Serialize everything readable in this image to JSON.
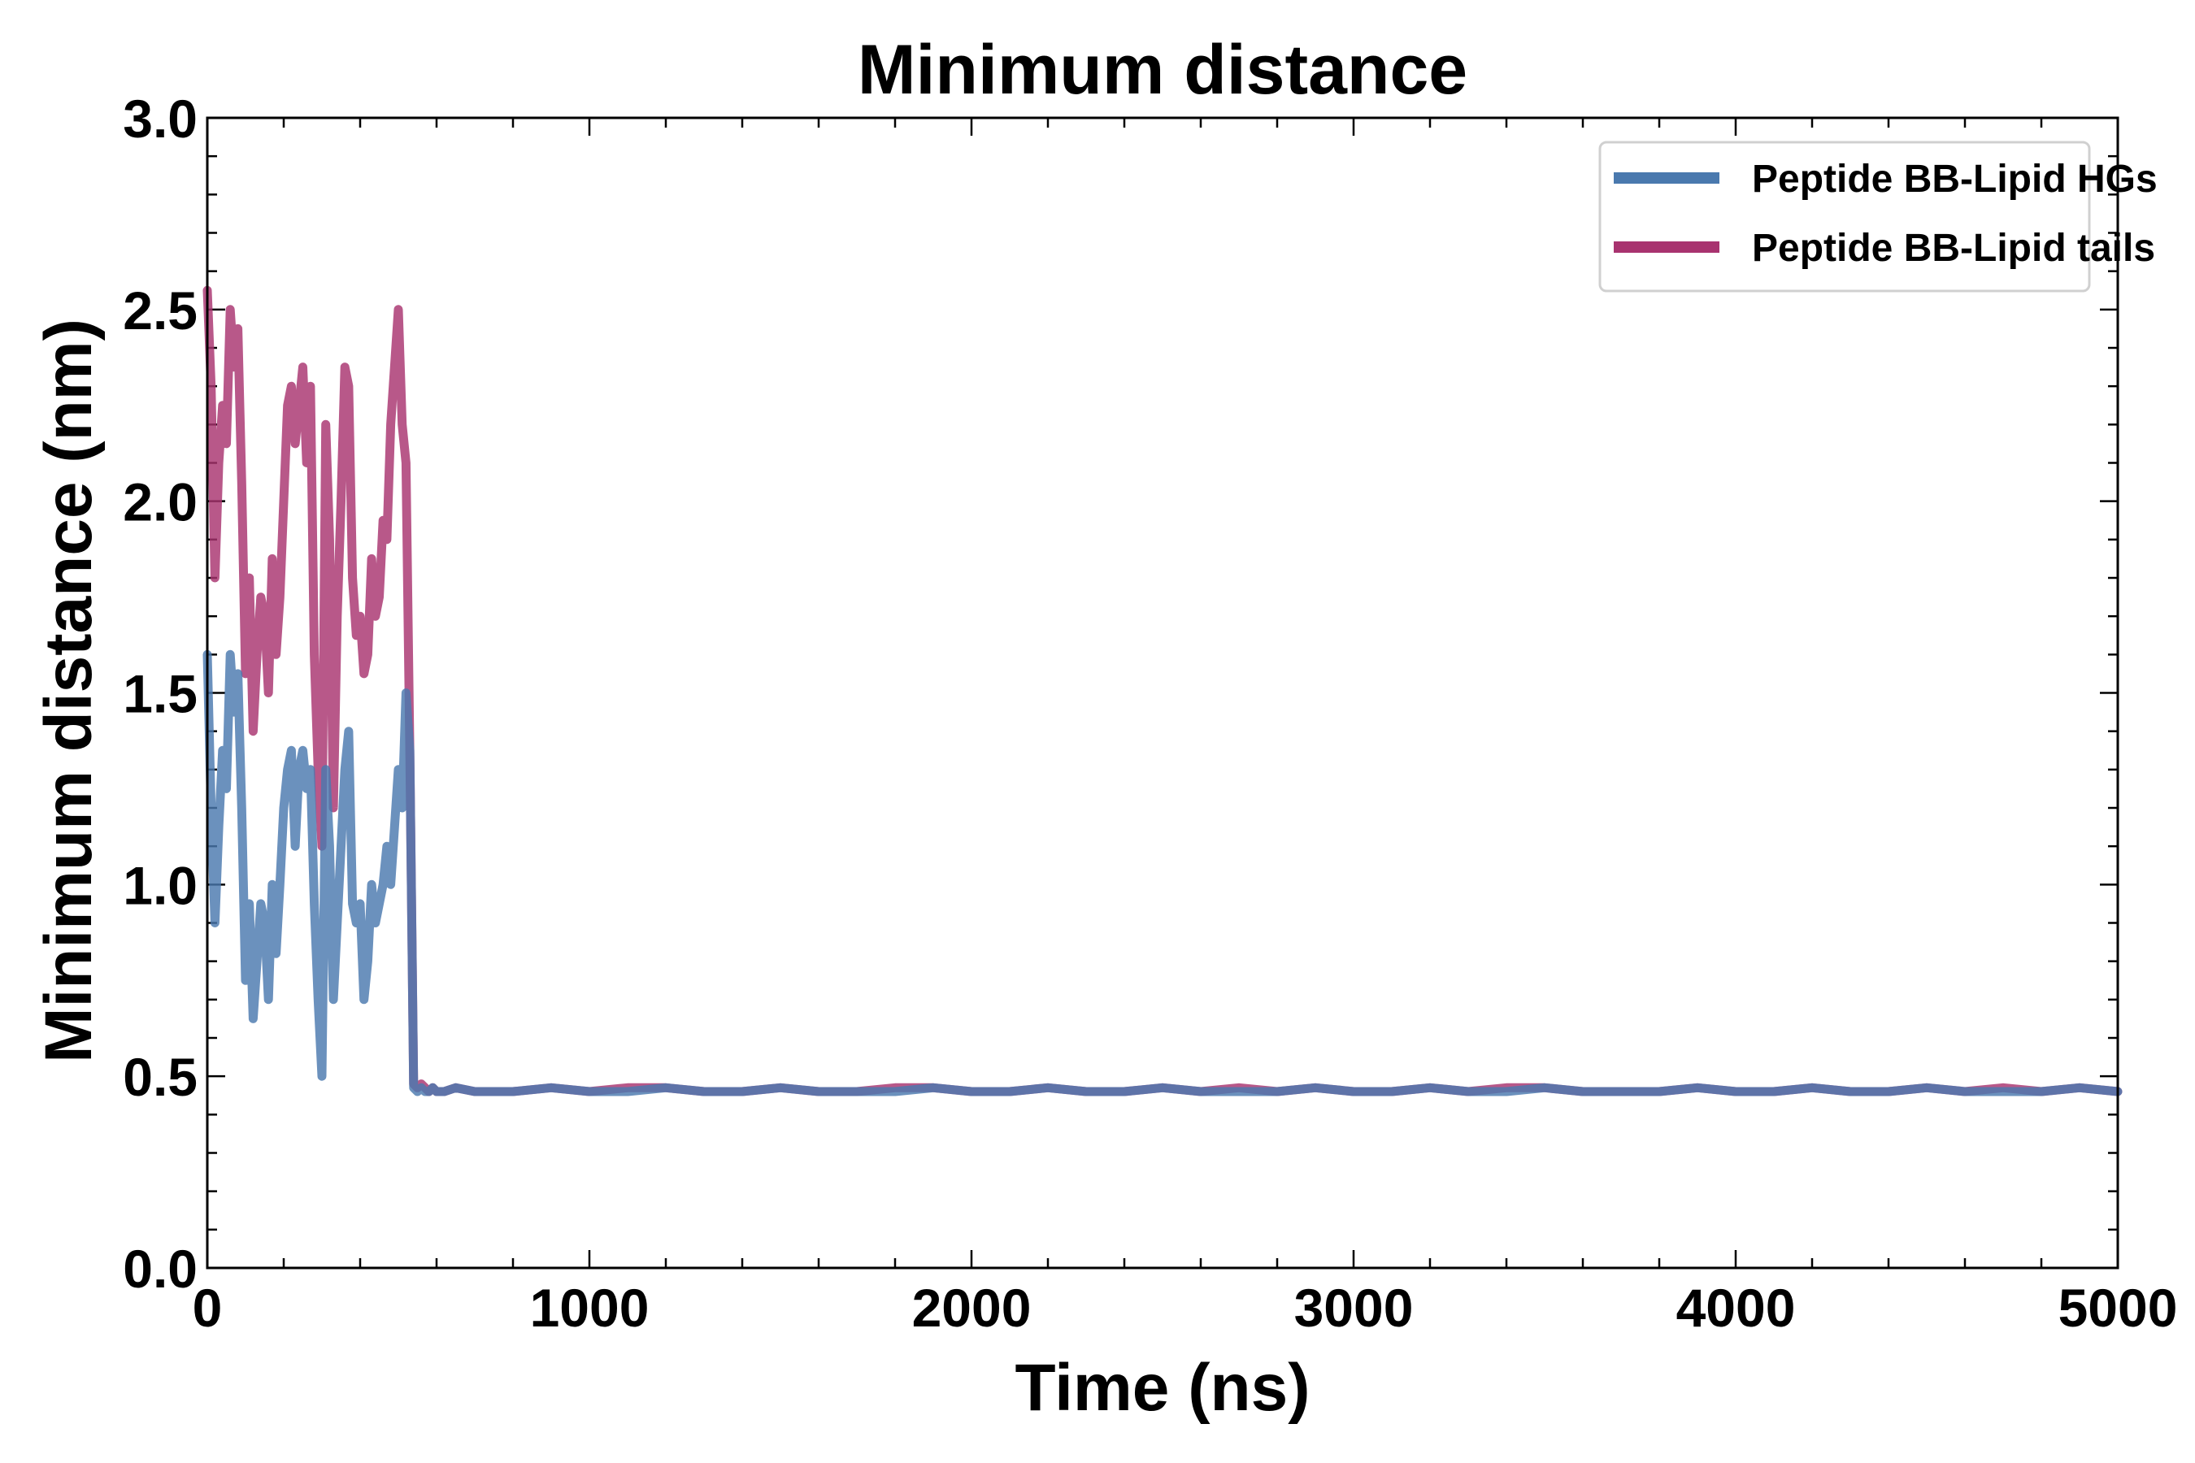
{
  "chart_data": {
    "type": "line",
    "title": "Minimum distance",
    "xlabel": "Time (ns)",
    "ylabel": "Minimum distance (nm)",
    "xlim": [
      0,
      5000
    ],
    "ylim": [
      0.0,
      3.0
    ],
    "x_ticks": [
      0,
      1000,
      2000,
      3000,
      4000,
      5000
    ],
    "x_tick_labels": [
      "0",
      "1000",
      "2000",
      "3000",
      "4000",
      "5000"
    ],
    "x_minor_step": 200,
    "y_ticks": [
      0.0,
      0.5,
      1.0,
      1.5,
      2.0,
      2.5,
      3.0
    ],
    "y_tick_labels": [
      "0.0",
      "0.5",
      "1.0",
      "1.5",
      "2.0",
      "2.5",
      "3.0"
    ],
    "y_minor_step": 0.1,
    "grid": false,
    "legend_position": "top-right",
    "series": [
      {
        "name": "Peptide BB-Lipid HGs",
        "color": "#4a79ae",
        "x": [
          0,
          10,
          20,
          30,
          40,
          50,
          60,
          70,
          80,
          90,
          100,
          110,
          120,
          130,
          140,
          150,
          160,
          170,
          180,
          190,
          200,
          210,
          220,
          230,
          240,
          250,
          260,
          270,
          280,
          290,
          300,
          310,
          320,
          330,
          340,
          350,
          360,
          370,
          380,
          390,
          400,
          410,
          420,
          430,
          440,
          450,
          460,
          470,
          480,
          490,
          500,
          510,
          520,
          530,
          540,
          550,
          560,
          570,
          580,
          590,
          600,
          620,
          650,
          700,
          800,
          900,
          1000,
          1100,
          1200,
          1300,
          1400,
          1500,
          1600,
          1700,
          1800,
          1900,
          2000,
          2100,
          2200,
          2300,
          2400,
          2500,
          2600,
          2700,
          2800,
          2900,
          3000,
          3100,
          3200,
          3300,
          3400,
          3500,
          3600,
          3700,
          3800,
          3900,
          4000,
          4100,
          4200,
          4300,
          4400,
          4500,
          4600,
          4700,
          4800,
          4900,
          5000
        ],
        "y": [
          1.6,
          1.2,
          0.9,
          1.15,
          1.35,
          1.25,
          1.6,
          1.45,
          1.55,
          1.2,
          0.75,
          0.95,
          0.65,
          0.8,
          0.95,
          0.9,
          0.7,
          1.0,
          0.82,
          1.0,
          1.2,
          1.3,
          1.35,
          1.1,
          1.3,
          1.35,
          1.25,
          1.3,
          0.95,
          0.7,
          0.5,
          1.3,
          1.1,
          0.7,
          0.9,
          1.1,
          1.3,
          1.4,
          0.95,
          0.9,
          0.95,
          0.7,
          0.8,
          1.0,
          0.9,
          0.95,
          1.0,
          1.1,
          1.0,
          1.15,
          1.3,
          1.2,
          1.5,
          1.35,
          0.47,
          0.46,
          0.47,
          0.46,
          0.46,
          0.47,
          0.46,
          0.46,
          0.47,
          0.46,
          0.46,
          0.47,
          0.46,
          0.46,
          0.47,
          0.46,
          0.46,
          0.47,
          0.46,
          0.46,
          0.46,
          0.47,
          0.46,
          0.46,
          0.47,
          0.46,
          0.46,
          0.47,
          0.46,
          0.46,
          0.46,
          0.47,
          0.46,
          0.46,
          0.47,
          0.46,
          0.46,
          0.47,
          0.46,
          0.46,
          0.46,
          0.47,
          0.46,
          0.46,
          0.47,
          0.46,
          0.46,
          0.47,
          0.46,
          0.46,
          0.46,
          0.47,
          0.46
        ]
      },
      {
        "name": "Peptide BB-Lipid tails",
        "color": "#a8336f",
        "x": [
          0,
          10,
          20,
          30,
          40,
          50,
          60,
          70,
          80,
          90,
          100,
          110,
          120,
          130,
          140,
          150,
          160,
          170,
          180,
          190,
          200,
          210,
          220,
          230,
          240,
          250,
          260,
          270,
          280,
          290,
          300,
          310,
          320,
          330,
          340,
          350,
          360,
          370,
          380,
          390,
          400,
          410,
          420,
          430,
          440,
          450,
          460,
          470,
          480,
          490,
          500,
          510,
          520,
          530,
          540,
          550,
          560,
          570,
          580,
          590,
          600,
          620,
          650,
          700,
          800,
          900,
          1000,
          1100,
          1200,
          1300,
          1400,
          1500,
          1600,
          1700,
          1800,
          1900,
          2000,
          2100,
          2200,
          2300,
          2400,
          2500,
          2600,
          2700,
          2800,
          2900,
          3000,
          3100,
          3200,
          3300,
          3400,
          3500,
          3600,
          3700,
          3800,
          3900,
          4000,
          4100,
          4200,
          4300,
          4400,
          4500,
          4600,
          4700,
          4800,
          4900,
          5000
        ],
        "y": [
          2.55,
          2.3,
          1.8,
          2.1,
          2.25,
          2.15,
          2.5,
          2.35,
          2.45,
          2.05,
          1.55,
          1.8,
          1.4,
          1.6,
          1.75,
          1.7,
          1.5,
          1.85,
          1.6,
          1.75,
          2.0,
          2.25,
          2.3,
          2.15,
          2.25,
          2.35,
          2.1,
          2.3,
          1.6,
          1.3,
          1.1,
          2.2,
          1.9,
          1.2,
          1.7,
          2.0,
          2.35,
          2.3,
          1.8,
          1.65,
          1.7,
          1.55,
          1.6,
          1.85,
          1.7,
          1.75,
          1.95,
          1.9,
          2.2,
          2.35,
          2.5,
          2.2,
          2.1,
          1.35,
          0.48,
          0.47,
          0.48,
          0.47,
          0.46,
          0.47,
          0.46,
          0.46,
          0.47,
          0.46,
          0.46,
          0.47,
          0.46,
          0.47,
          0.47,
          0.46,
          0.46,
          0.47,
          0.46,
          0.46,
          0.47,
          0.47,
          0.46,
          0.46,
          0.47,
          0.46,
          0.46,
          0.47,
          0.46,
          0.47,
          0.46,
          0.47,
          0.46,
          0.46,
          0.47,
          0.46,
          0.47,
          0.47,
          0.46,
          0.46,
          0.46,
          0.47,
          0.46,
          0.46,
          0.47,
          0.46,
          0.46,
          0.47,
          0.46,
          0.47,
          0.46,
          0.47,
          0.46
        ]
      }
    ]
  }
}
